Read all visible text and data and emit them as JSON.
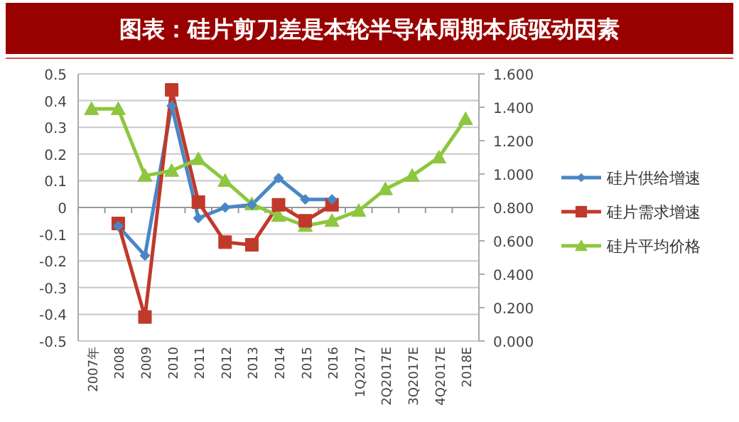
{
  "chart_data": {
    "type": "line",
    "title": "图表：硅片剪刀差是本轮半导体周期本质驱动因素",
    "categories": [
      "2007年",
      "2008",
      "2009",
      "2010",
      "2011",
      "2012",
      "2013",
      "2014",
      "2015",
      "2016",
      "1Q2017",
      "2Q2017E",
      "3Q2017E",
      "4Q2017E",
      "2018E"
    ],
    "series": [
      {
        "name": "硅片供给增速",
        "color": "#4a86c5",
        "marker": "diamond",
        "values": [
          null,
          -0.07,
          -0.18,
          0.38,
          -0.04,
          0.0,
          0.01,
          0.11,
          0.03,
          0.03,
          null,
          null,
          null,
          null,
          null
        ]
      },
      {
        "name": "硅片需求增速",
        "color": "#c0392b",
        "marker": "square",
        "values": [
          null,
          -0.06,
          -0.41,
          0.44,
          0.02,
          -0.13,
          -0.14,
          0.01,
          -0.05,
          0.01,
          null,
          null,
          null,
          null,
          null
        ]
      },
      {
        "name": "硅片平均价格",
        "color": "#8dc63f",
        "marker": "triangle",
        "axis": "y2",
        "values": [
          1.39,
          1.39,
          0.99,
          1.02,
          1.09,
          0.96,
          0.82,
          0.75,
          0.69,
          0.72,
          0.78,
          0.91,
          0.99,
          1.1,
          1.33
        ]
      }
    ],
    "ylim": [
      -0.5,
      0.5
    ],
    "yticks": [
      -0.5,
      -0.4,
      -0.3,
      -0.2,
      -0.1,
      0,
      0.1,
      0.2,
      0.3,
      0.4,
      0.5
    ],
    "y2lim": [
      0,
      1.6
    ],
    "y2ticks": [
      {
        "value": 0,
        "label": "0.000"
      },
      {
        "value": 0.2,
        "label": "0.200"
      },
      {
        "value": 0.4,
        "label": "0.400"
      },
      {
        "value": 0.6,
        "label": "0.600"
      },
      {
        "value": 0.8,
        "label": "0.800"
      },
      {
        "value": 1.0,
        "label": "1.000"
      },
      {
        "value": 1.2,
        "label": "1.200"
      },
      {
        "value": 1.4,
        "label": "1.400"
      },
      {
        "value": 1.6,
        "label": "1.600"
      }
    ],
    "grid": "y",
    "legend": "right"
  }
}
